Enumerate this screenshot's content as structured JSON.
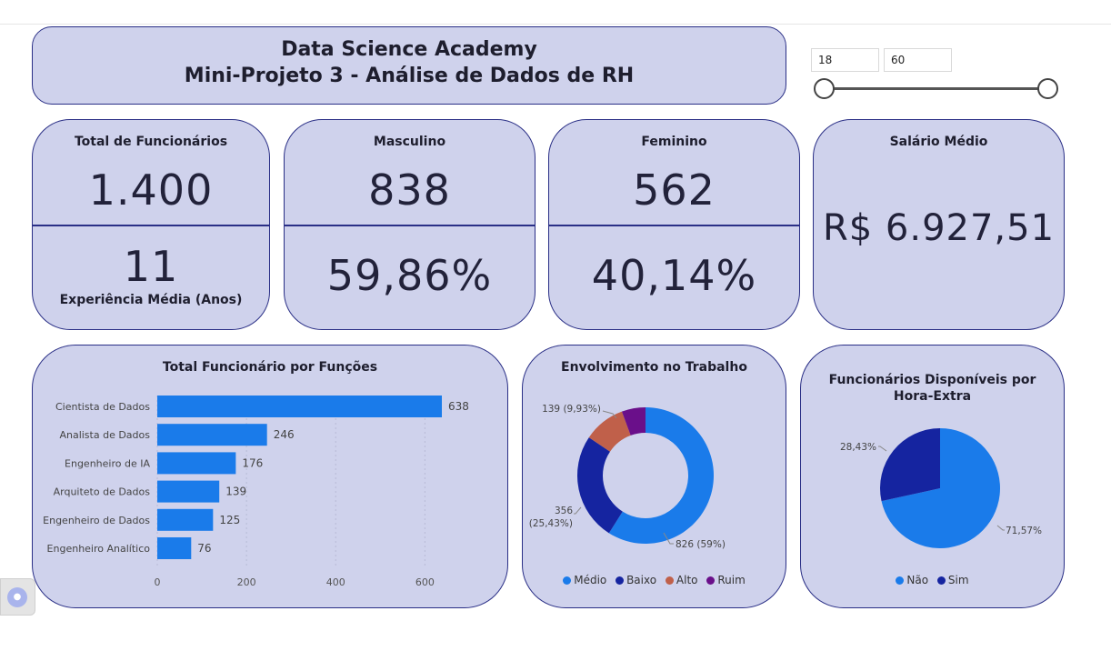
{
  "header": {
    "line1": "Data Science Academy",
    "line2": "Mini-Projeto 3 - Análise de Dados de RH"
  },
  "age_slicer": {
    "min_value": "18",
    "max_value": "60",
    "range_fraction": [
      0,
      1
    ]
  },
  "kpis": {
    "total": {
      "label": "Total de Funcionários",
      "value": "1.400",
      "sub_value": "11",
      "sub_label": "Experiência Média (Anos)"
    },
    "male": {
      "label": "Masculino",
      "value": "838",
      "pct": "59,86%"
    },
    "female": {
      "label": "Feminino",
      "value": "562",
      "pct": "40,14%"
    },
    "salary": {
      "label": "Salário Médio",
      "value": "R$ 6.927,51"
    }
  },
  "colors": {
    "card_bg": "#cfd2ec",
    "card_border": "#2a2f86",
    "bar": "#1a7bea",
    "medio": "#1a7bea",
    "baixo": "#1524a0",
    "alto": "#c0604a",
    "ruim": "#6a0f8a"
  },
  "chart_data": [
    {
      "type": "bar",
      "orientation": "horizontal",
      "title": "Total Funcionário por Funções",
      "categories": [
        "Cientista de Dados",
        "Analista de Dados",
        "Engenheiro de IA",
        "Arquiteto de Dados",
        "Engenheiro de Dados",
        "Engenheiro Analítico"
      ],
      "values": [
        638,
        246,
        176,
        139,
        125,
        76
      ],
      "xlim": [
        0,
        650
      ],
      "xticks": [
        0,
        200,
        400,
        600
      ],
      "grid": true
    },
    {
      "type": "pie",
      "variant": "donut",
      "title": "Envolvimento no Trabalho",
      "categories": [
        "Médio",
        "Baixo",
        "Alto",
        "Ruim"
      ],
      "values": [
        826,
        356,
        139,
        79
      ],
      "labels": [
        {
          "category": "Médio",
          "text": "826 (59%)"
        },
        {
          "category": "Baixo",
          "text": "356",
          "text2": "(25,43%)"
        },
        {
          "category": "Alto",
          "text": "139 (9,93%)"
        }
      ],
      "legend": "bottom"
    },
    {
      "type": "pie",
      "title_line1": "Funcionários Disponíveis por",
      "title_line2": "Hora-Extra",
      "categories": [
        "Não",
        "Sim"
      ],
      "values": [
        71.57,
        28.43
      ],
      "labels": [
        "71,57%",
        "28,43%"
      ],
      "legend": "bottom"
    }
  ]
}
